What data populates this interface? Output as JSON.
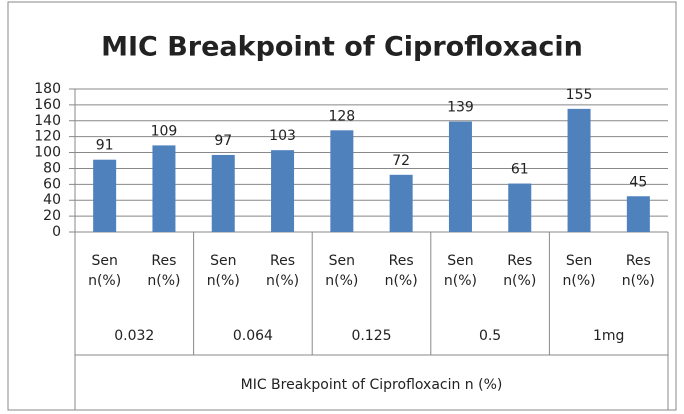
{
  "chart_data": {
    "type": "bar",
    "title": "MIC Breakpoint of Ciprofloxacin",
    "x_label": "MIC Breakpoint of Ciprofloxacin n (%)",
    "groups": [
      "0.032",
      "0.064",
      "0.125",
      "0.5",
      "1mg"
    ],
    "categories": [
      "Sen n(%)",
      "Res n(%)",
      "Sen n(%)",
      "Res n(%)",
      "Sen n(%)",
      "Res n(%)",
      "Sen n(%)",
      "Res n(%)",
      "Sen n(%)",
      "Res n(%)"
    ],
    "values": [
      91,
      109,
      97,
      103,
      128,
      72,
      139,
      61,
      155,
      45
    ],
    "color": "#4f81bd",
    "ylim": [
      0,
      180
    ],
    "yticks": [
      0,
      20,
      40,
      60,
      80,
      100,
      120,
      140,
      160,
      180
    ],
    "grid": true
  }
}
